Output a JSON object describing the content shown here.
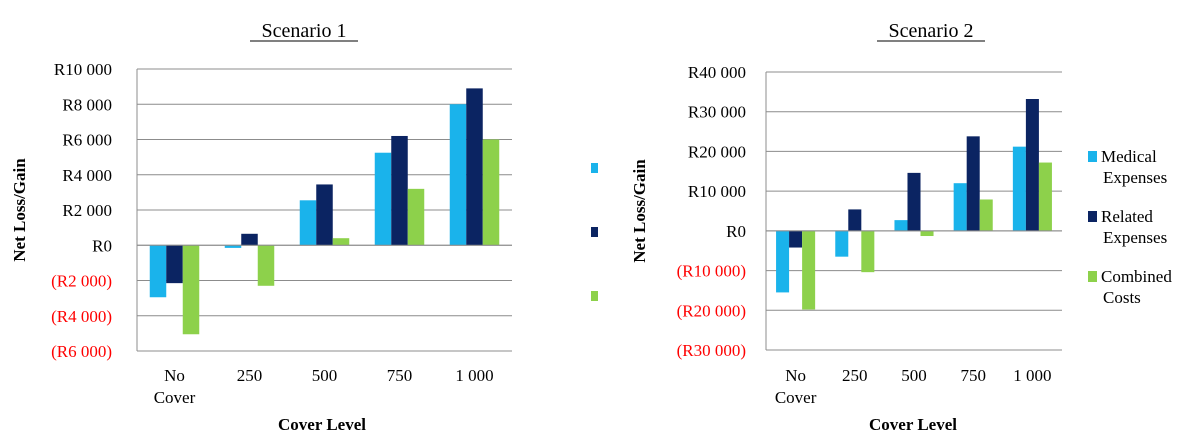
{
  "colors": {
    "medical": "#1AB3EB",
    "related": "#0B2462",
    "combined": "#8DD14B",
    "negative_tick": "#FF0000",
    "positive_tick": "#000000",
    "grid": "#8C8C8C"
  },
  "legend": {
    "items": [
      {
        "key": "medical",
        "label": "Medical Expenses"
      },
      {
        "key": "related",
        "label": "Related Expenses"
      },
      {
        "key": "combined",
        "label": "Combined Costs"
      }
    ]
  },
  "chart_data": [
    {
      "type": "bar",
      "title": "Scenario 1",
      "xlabel": "Cover Level",
      "ylabel": "Net Loss/Gain",
      "categories": [
        "No Cover",
        "250",
        "500",
        "750",
        "1 000"
      ],
      "ylim": [
        -6000,
        10000
      ],
      "yticks": [
        10000,
        8000,
        6000,
        4000,
        2000,
        0,
        -2000,
        -4000,
        -6000
      ],
      "ytick_labels": [
        "R10 000",
        "R8 000",
        "R6 000",
        "R4 000",
        "R2 000",
        "R0",
        "(R2 000)",
        "(R4 000)",
        "(R6 000)"
      ],
      "grid": true,
      "legend_labels_shown": false,
      "series": [
        {
          "key": "medical",
          "values": [
            -2950,
            -150,
            2550,
            5250,
            8000
          ]
        },
        {
          "key": "related",
          "values": [
            -2150,
            650,
            3450,
            6200,
            8900
          ]
        },
        {
          "key": "combined",
          "values": [
            -5050,
            -2300,
            400,
            3200,
            6000
          ]
        }
      ]
    },
    {
      "type": "bar",
      "title": "Scenario 2",
      "xlabel": "Cover Level",
      "ylabel": "Net Loss/Gain",
      "categories": [
        "No Cover",
        "250",
        "500",
        "750",
        "1 000"
      ],
      "ylim": [
        -30000,
        40000
      ],
      "yticks": [
        40000,
        30000,
        20000,
        10000,
        0,
        -10000,
        -20000,
        -30000
      ],
      "ytick_labels": [
        "R40 000",
        "R30 000",
        "R20 000",
        "R10 000",
        "R0",
        "(R10 000)",
        "(R20 000)",
        "(R30 000)"
      ],
      "grid": true,
      "legend_labels_shown": true,
      "series": [
        {
          "key": "medical",
          "values": [
            -15500,
            -6500,
            2700,
            12000,
            21200
          ]
        },
        {
          "key": "related",
          "values": [
            -4200,
            5400,
            14600,
            23800,
            33200
          ]
        },
        {
          "key": "combined",
          "values": [
            -19800,
            -10400,
            -1300,
            7900,
            17200
          ]
        }
      ]
    }
  ]
}
